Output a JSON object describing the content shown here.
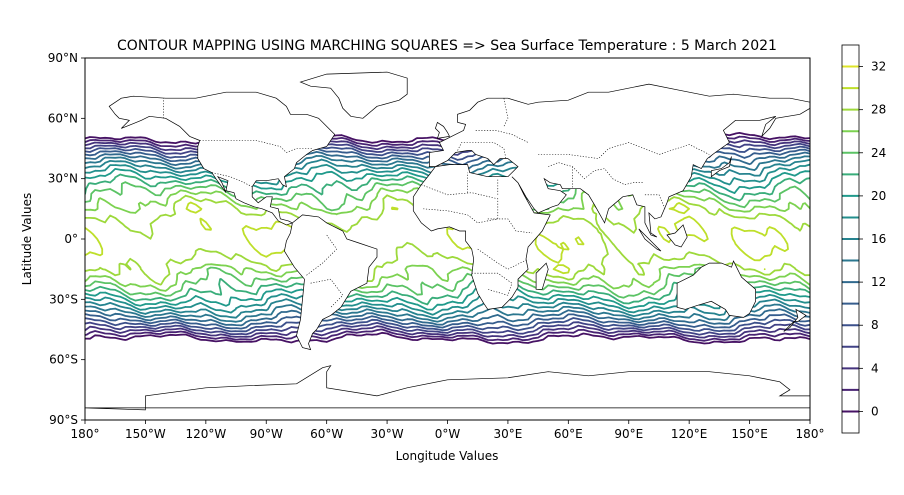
{
  "chart_data": {
    "type": "contour",
    "title": "CONTOUR MAPPING USING MARCHING SQUARES => Sea Surface Temperature : 5 March 2021",
    "xlabel": "Longitude Values",
    "ylabel": "Latitude Values",
    "xlim": [
      -180,
      180
    ],
    "ylim": [
      -90,
      90
    ],
    "xticks": [
      {
        "value": -180,
        "label": "180°"
      },
      {
        "value": -150,
        "label": "150°W"
      },
      {
        "value": -120,
        "label": "120°W"
      },
      {
        "value": -90,
        "label": "90°W"
      },
      {
        "value": -60,
        "label": "60°W"
      },
      {
        "value": -30,
        "label": "30°W"
      },
      {
        "value": 0,
        "label": "0°W"
      },
      {
        "value": 30,
        "label": "30°E"
      },
      {
        "value": 60,
        "label": "60°E"
      },
      {
        "value": 90,
        "label": "90°E"
      },
      {
        "value": 120,
        "label": "120°E"
      },
      {
        "value": 150,
        "label": "150°E"
      },
      {
        "value": 180,
        "label": "180°"
      }
    ],
    "yticks": [
      {
        "value": 90,
        "label": "90°N"
      },
      {
        "value": 60,
        "label": "60°N"
      },
      {
        "value": 30,
        "label": "30°N"
      },
      {
        "value": 0,
        "label": "0°"
      },
      {
        "value": -30,
        "label": "30°S"
      },
      {
        "value": -60,
        "label": "60°S"
      },
      {
        "value": -90,
        "label": "90°S"
      }
    ],
    "colorbar": {
      "colormap": "viridis",
      "range": [
        -2,
        34
      ],
      "levels": [
        -2,
        0,
        2,
        4,
        6,
        8,
        10,
        12,
        14,
        16,
        18,
        20,
        22,
        24,
        26,
        28,
        30,
        32,
        34
      ],
      "tick_values": [
        0,
        4,
        8,
        12,
        16,
        20,
        24,
        28,
        32
      ],
      "tick_labels": [
        "0",
        "4",
        "8",
        "12",
        "16",
        "20",
        "24",
        "28",
        "32"
      ]
    },
    "grid": false,
    "legend": "colorbar-right"
  }
}
